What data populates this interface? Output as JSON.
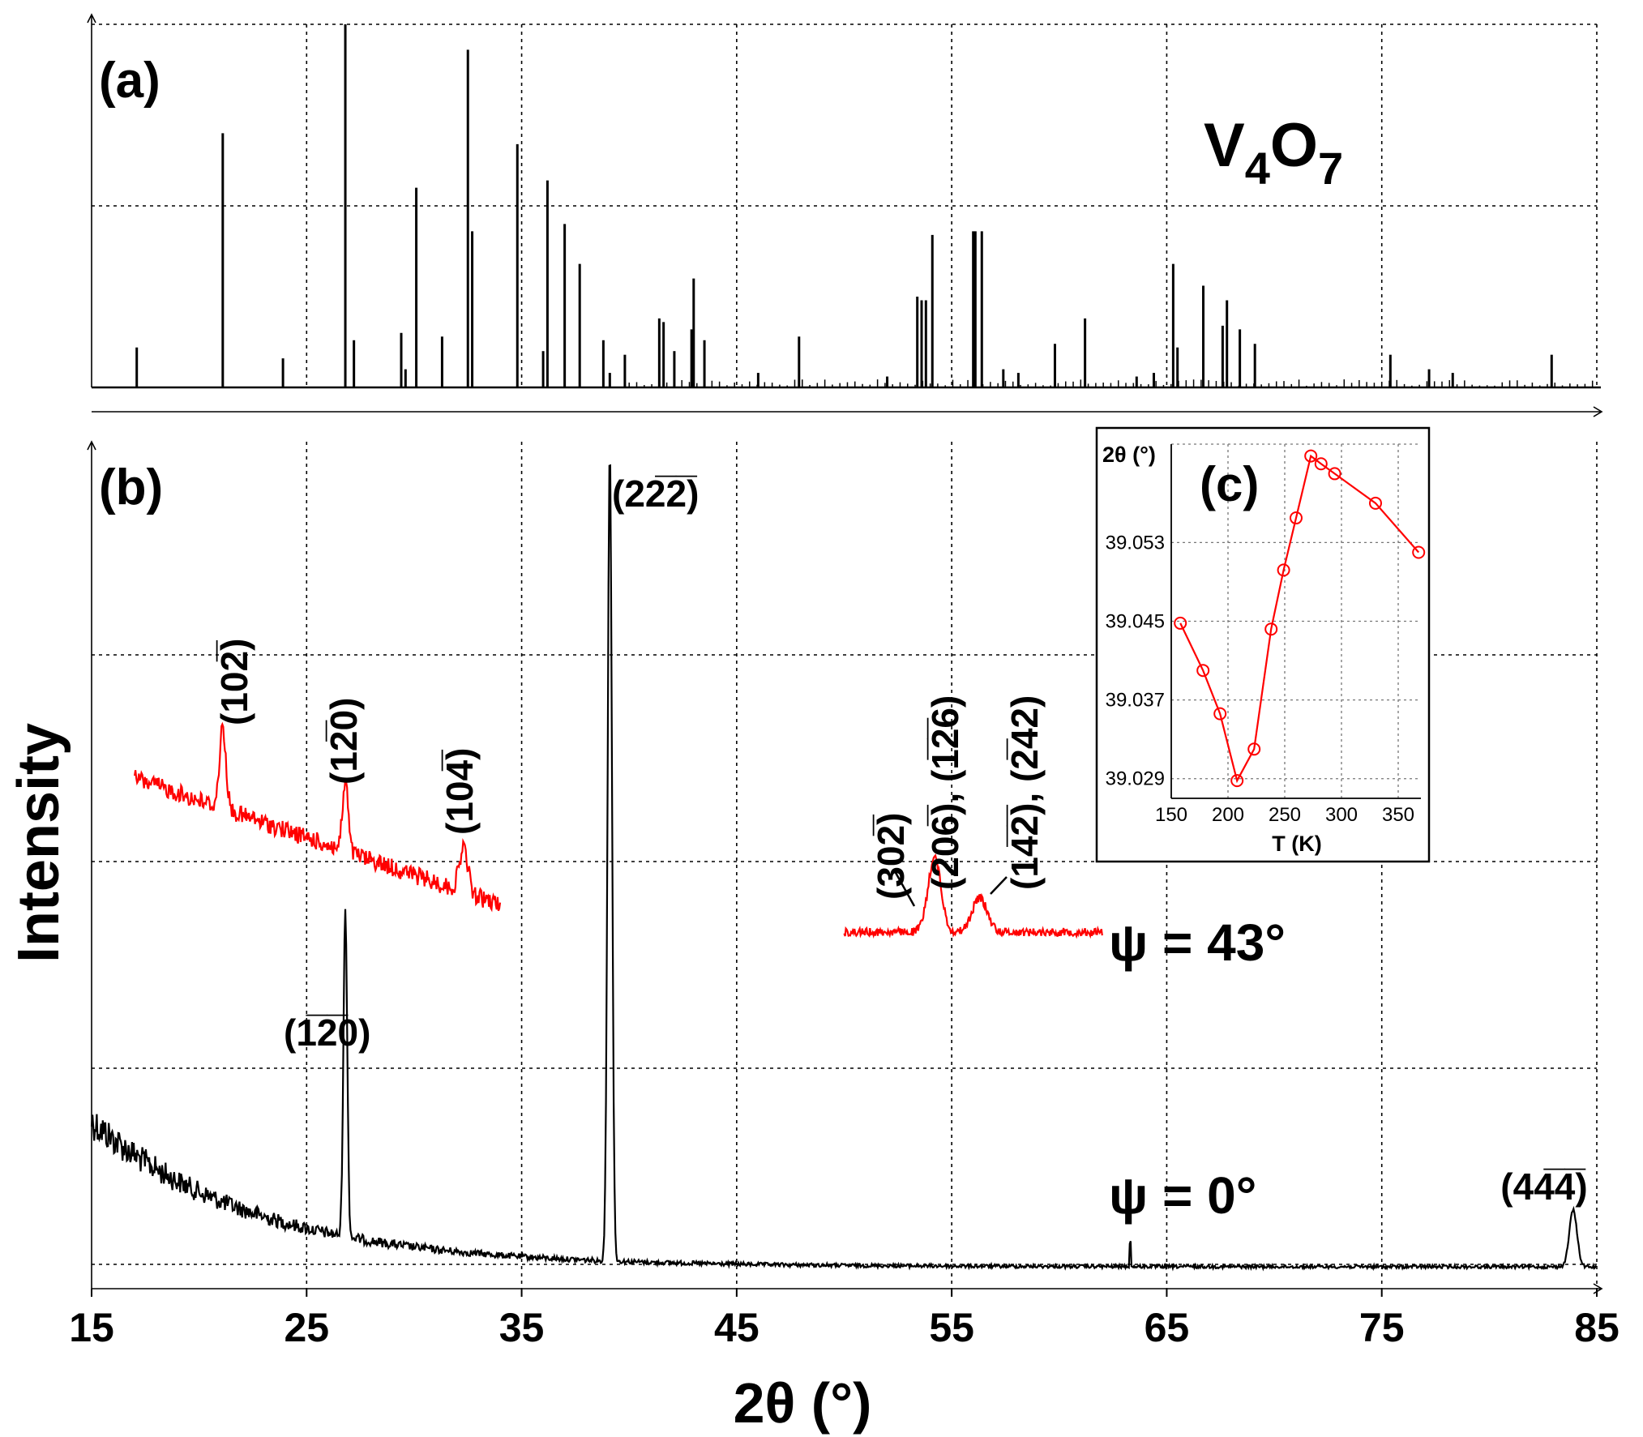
{
  "chart_data": [
    {
      "panel": "a",
      "type": "bar",
      "panel_label": "(a)",
      "title": "V4O7",
      "compound_main": "V",
      "compound_sub1": "4",
      "compound_mid": "O",
      "compound_sub2": "7",
      "xlim": [
        15,
        85
      ],
      "ylim": [
        0,
        100
      ],
      "x": [
        17.1,
        21.1,
        23.9,
        26.8,
        27.2,
        29.4,
        29.6,
        30.1,
        31.3,
        32.5,
        32.7,
        34.8,
        36.0,
        36.2,
        37.0,
        37.7,
        38.8,
        39.1,
        39.8,
        41.4,
        41.6,
        42.1,
        42.9,
        43.0,
        43.5,
        46.0,
        47.9,
        52.0,
        53.4,
        53.6,
        53.8,
        54.1,
        56.0,
        56.1,
        56.4,
        57.4,
        58.1,
        59.8,
        61.2,
        63.6,
        64.4,
        65.3,
        65.5,
        66.7,
        67.6,
        67.8,
        68.4,
        69.1,
        75.4,
        77.2,
        78.3,
        82.9
      ],
      "values": [
        11,
        70,
        8,
        100,
        13,
        15,
        5,
        55,
        14,
        93,
        43,
        67,
        10,
        57,
        45,
        34,
        13,
        4,
        9,
        19,
        18,
        10,
        16,
        30,
        13,
        4,
        14,
        3,
        25,
        24,
        24,
        42,
        43,
        43,
        43,
        5,
        4,
        12,
        19,
        3,
        4,
        34,
        11,
        28,
        17,
        24,
        16,
        12,
        9,
        5,
        4,
        9
      ]
    },
    {
      "panel": "b",
      "type": "line",
      "panel_label": "(b)",
      "xlabel": "2θ (°)",
      "ylabel": "Intensity",
      "xlim": [
        15,
        85
      ],
      "xticks": [
        15,
        25,
        35,
        45,
        55,
        65,
        75,
        85
      ],
      "xtick_labels": [
        "15",
        "25",
        "35",
        "45",
        "55",
        "65",
        "75",
        "85"
      ],
      "series": [
        {
          "name": "ψ = 0°",
          "color": "#000000",
          "x_range": [
            15,
            85
          ],
          "peaks": [
            {
              "x": 26.8,
              "label": "(1̅2̅0)"
            },
            {
              "x": 39.1,
              "label": "(22̅2̅)"
            },
            {
              "x": 83.9,
              "label": "(44̅4̅)"
            }
          ]
        },
        {
          "name": "ψ = 43°",
          "color": "#ff0000",
          "segments": [
            [
              17.0,
              34.0
            ],
            [
              50.0,
              62.0
            ]
          ],
          "peaks": [
            {
              "x": 21.1,
              "label": "(102̅)"
            },
            {
              "x": 26.8,
              "label": "(12̅0)"
            },
            {
              "x": 32.3,
              "label": "(104̅)"
            },
            {
              "x": 53.9,
              "label": "(302̅)"
            },
            {
              "x": 54.2,
              "label": "(206̅), (1̅2̅6)"
            },
            {
              "x": 56.3,
              "label": "(14̅2̅), (2̅42)"
            }
          ]
        }
      ],
      "psi_labels": [
        "ψ = 43°",
        "ψ = 0°"
      ]
    },
    {
      "panel": "c",
      "type": "line",
      "panel_label": "(c)",
      "xlabel": "T (K)",
      "ylabel": "2θ (°)",
      "xlim": [
        150,
        370
      ],
      "ylim": [
        39.027,
        39.063
      ],
      "xticks": [
        150,
        200,
        250,
        300,
        350
      ],
      "yticks": [
        39.029,
        39.037,
        39.045,
        39.053
      ],
      "xtick_labels": [
        "150",
        "200",
        "250",
        "300",
        "350"
      ],
      "ytick_labels": [
        "39.029",
        "39.037",
        "39.045",
        "39.053"
      ],
      "color": "#ff0000",
      "x": [
        158,
        178,
        193,
        208,
        223,
        238,
        249,
        260,
        273,
        282,
        294,
        330,
        368
      ],
      "y": [
        39.0448,
        39.04,
        39.0356,
        39.0288,
        39.032,
        39.0442,
        39.0502,
        39.0555,
        39.0618,
        39.061,
        39.06,
        39.057,
        39.052
      ]
    }
  ]
}
